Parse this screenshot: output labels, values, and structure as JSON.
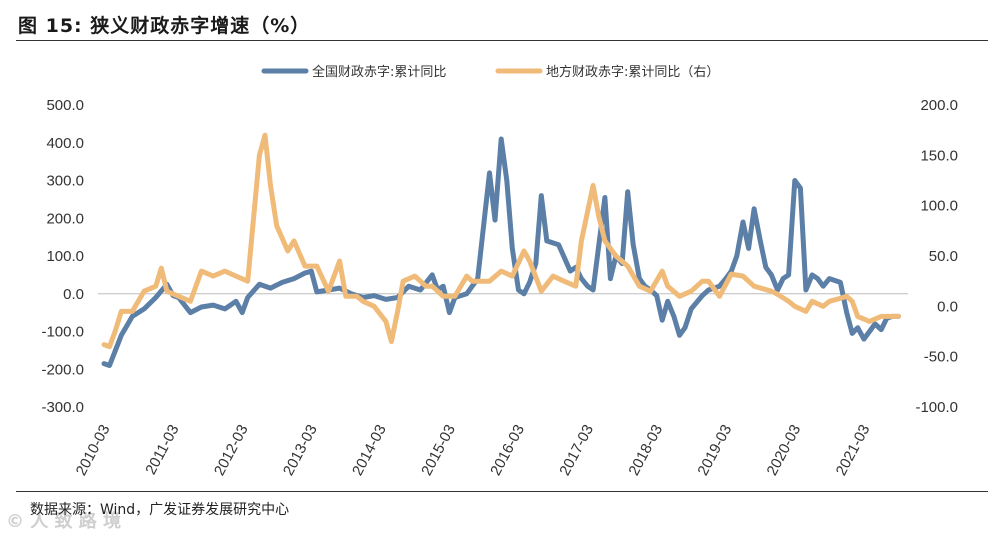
{
  "figure": {
    "title": "图 15: 狭义财政赤字增速（%）",
    "source": "数据来源：Wind，广发证券发展研究中心",
    "watermark": "© 人 致 路 境"
  },
  "colors": {
    "national": "#5b7fa6",
    "local": "#f0bb79",
    "axis": "#333333"
  },
  "chart_data": {
    "type": "line",
    "title": "狭义财政赤字增速（%）",
    "x_categories": [
      "2010-03",
      "2011-03",
      "2012-03",
      "2013-03",
      "2014-03",
      "2015-03",
      "2016-03",
      "2017-03",
      "2018-03",
      "2019-03",
      "2020-03",
      "2021-03"
    ],
    "left_axis": {
      "min": -300,
      "max": 500,
      "ticks": [
        "500.0",
        "400.0",
        "300.0",
        "200.0",
        "100.0",
        "0.0",
        "-100.0",
        "-200.0",
        "-300.0"
      ]
    },
    "right_axis": {
      "min": -100,
      "max": 200,
      "ticks": [
        "200.0",
        "150.0",
        "100.0",
        "50.0",
        "0.0",
        "-50.0",
        "-100.0"
      ]
    },
    "legend": {
      "position": "top-center"
    },
    "series": [
      {
        "name": "全国财政赤字:累计同比",
        "axis": "left",
        "color_key": "national",
        "points": [
          [
            2010.17,
            -185
          ],
          [
            2010.25,
            -190
          ],
          [
            2010.42,
            -110
          ],
          [
            2010.58,
            -60
          ],
          [
            2010.75,
            -40
          ],
          [
            2010.92,
            -10
          ],
          [
            2011.08,
            25
          ],
          [
            2011.17,
            -5
          ],
          [
            2011.25,
            -10
          ],
          [
            2011.42,
            -50
          ],
          [
            2011.58,
            -35
          ],
          [
            2011.75,
            -30
          ],
          [
            2011.92,
            -40
          ],
          [
            2012.08,
            -20
          ],
          [
            2012.17,
            -50
          ],
          [
            2012.25,
            -10
          ],
          [
            2012.42,
            25
          ],
          [
            2012.58,
            15
          ],
          [
            2012.75,
            30
          ],
          [
            2012.92,
            40
          ],
          [
            2013.08,
            55
          ],
          [
            2013.17,
            60
          ],
          [
            2013.25,
            5
          ],
          [
            2013.42,
            10
          ],
          [
            2013.58,
            15
          ],
          [
            2013.75,
            0
          ],
          [
            2013.92,
            -10
          ],
          [
            2014.08,
            -5
          ],
          [
            2014.25,
            -15
          ],
          [
            2014.42,
            -10
          ],
          [
            2014.58,
            20
          ],
          [
            2014.75,
            10
          ],
          [
            2014.92,
            50
          ],
          [
            2015.0,
            10
          ],
          [
            2015.08,
            20
          ],
          [
            2015.17,
            -50
          ],
          [
            2015.25,
            -10
          ],
          [
            2015.42,
            0
          ],
          [
            2015.58,
            40
          ],
          [
            2015.75,
            320
          ],
          [
            2015.83,
            195
          ],
          [
            2015.92,
            410
          ],
          [
            2016.0,
            300
          ],
          [
            2016.08,
            120
          ],
          [
            2016.17,
            10
          ],
          [
            2016.25,
            0
          ],
          [
            2016.33,
            30
          ],
          [
            2016.42,
            80
          ],
          [
            2016.5,
            260
          ],
          [
            2016.58,
            140
          ],
          [
            2016.75,
            130
          ],
          [
            2016.92,
            60
          ],
          [
            2017.0,
            70
          ],
          [
            2017.08,
            40
          ],
          [
            2017.17,
            20
          ],
          [
            2017.25,
            10
          ],
          [
            2017.42,
            255
          ],
          [
            2017.5,
            40
          ],
          [
            2017.58,
            100
          ],
          [
            2017.67,
            80
          ],
          [
            2017.75,
            270
          ],
          [
            2017.83,
            130
          ],
          [
            2017.92,
            40
          ],
          [
            2018.0,
            20
          ],
          [
            2018.08,
            10
          ],
          [
            2018.17,
            -5
          ],
          [
            2018.25,
            -70
          ],
          [
            2018.33,
            -20
          ],
          [
            2018.42,
            -60
          ],
          [
            2018.5,
            -110
          ],
          [
            2018.58,
            -90
          ],
          [
            2018.67,
            -40
          ],
          [
            2018.83,
            -5
          ],
          [
            2018.92,
            10
          ],
          [
            2019.08,
            20
          ],
          [
            2019.17,
            40
          ],
          [
            2019.25,
            60
          ],
          [
            2019.33,
            100
          ],
          [
            2019.42,
            190
          ],
          [
            2019.5,
            120
          ],
          [
            2019.58,
            225
          ],
          [
            2019.67,
            140
          ],
          [
            2019.75,
            70
          ],
          [
            2019.83,
            50
          ],
          [
            2019.92,
            10
          ],
          [
            2020.0,
            40
          ],
          [
            2020.08,
            50
          ],
          [
            2020.17,
            300
          ],
          [
            2020.25,
            280
          ],
          [
            2020.33,
            10
          ],
          [
            2020.42,
            50
          ],
          [
            2020.5,
            40
          ],
          [
            2020.58,
            20
          ],
          [
            2020.67,
            40
          ],
          [
            2020.83,
            30
          ],
          [
            2020.92,
            -50
          ],
          [
            2021.0,
            -105
          ],
          [
            2021.08,
            -90
          ],
          [
            2021.17,
            -120
          ],
          [
            2021.25,
            -100
          ],
          [
            2021.33,
            -80
          ],
          [
            2021.42,
            -95
          ],
          [
            2021.5,
            -65
          ],
          [
            2021.58,
            -60
          ],
          [
            2021.67,
            -60
          ]
        ]
      },
      {
        "name": "地方财政赤字:累计同比（右）",
        "axis": "right",
        "color_key": "local",
        "points": [
          [
            2010.17,
            -38
          ],
          [
            2010.25,
            -40
          ],
          [
            2010.33,
            -25
          ],
          [
            2010.42,
            -5
          ],
          [
            2010.58,
            -5
          ],
          [
            2010.75,
            15
          ],
          [
            2010.92,
            20
          ],
          [
            2011.0,
            38
          ],
          [
            2011.08,
            15
          ],
          [
            2011.25,
            10
          ],
          [
            2011.42,
            5
          ],
          [
            2011.58,
            35
          ],
          [
            2011.75,
            30
          ],
          [
            2011.92,
            35
          ],
          [
            2012.08,
            30
          ],
          [
            2012.25,
            25
          ],
          [
            2012.42,
            150
          ],
          [
            2012.5,
            170
          ],
          [
            2012.58,
            120
          ],
          [
            2012.67,
            80
          ],
          [
            2012.83,
            55
          ],
          [
            2012.92,
            65
          ],
          [
            2013.08,
            40
          ],
          [
            2013.25,
            40
          ],
          [
            2013.42,
            15
          ],
          [
            2013.58,
            45
          ],
          [
            2013.67,
            10
          ],
          [
            2013.83,
            10
          ],
          [
            2013.92,
            5
          ],
          [
            2014.08,
            0
          ],
          [
            2014.25,
            -15
          ],
          [
            2014.33,
            -35
          ],
          [
            2014.42,
            -5
          ],
          [
            2014.5,
            25
          ],
          [
            2014.67,
            30
          ],
          [
            2014.83,
            20
          ],
          [
            2014.92,
            20
          ],
          [
            2015.08,
            10
          ],
          [
            2015.25,
            10
          ],
          [
            2015.42,
            30
          ],
          [
            2015.5,
            25
          ],
          [
            2015.58,
            25
          ],
          [
            2015.75,
            25
          ],
          [
            2015.92,
            35
          ],
          [
            2016.08,
            30
          ],
          [
            2016.25,
            55
          ],
          [
            2016.33,
            45
          ],
          [
            2016.5,
            15
          ],
          [
            2016.67,
            30
          ],
          [
            2016.83,
            25
          ],
          [
            2017.0,
            20
          ],
          [
            2017.08,
            65
          ],
          [
            2017.25,
            120
          ],
          [
            2017.33,
            90
          ],
          [
            2017.42,
            65
          ],
          [
            2017.58,
            50
          ],
          [
            2017.75,
            40
          ],
          [
            2017.92,
            20
          ],
          [
            2018.08,
            15
          ],
          [
            2018.25,
            35
          ],
          [
            2018.33,
            20
          ],
          [
            2018.5,
            10
          ],
          [
            2018.67,
            15
          ],
          [
            2018.83,
            25
          ],
          [
            2018.92,
            25
          ],
          [
            2019.08,
            10
          ],
          [
            2019.25,
            32
          ],
          [
            2019.42,
            30
          ],
          [
            2019.58,
            20
          ],
          [
            2019.83,
            15
          ],
          [
            2019.92,
            12
          ],
          [
            2020.08,
            5
          ],
          [
            2020.17,
            0
          ],
          [
            2020.33,
            -5
          ],
          [
            2020.42,
            5
          ],
          [
            2020.58,
            0
          ],
          [
            2020.67,
            5
          ],
          [
            2020.83,
            8
          ],
          [
            2020.92,
            10
          ],
          [
            2021.0,
            5
          ],
          [
            2021.08,
            -10
          ],
          [
            2021.25,
            -15
          ],
          [
            2021.42,
            -10
          ],
          [
            2021.58,
            -10
          ],
          [
            2021.67,
            -10
          ]
        ]
      }
    ]
  }
}
